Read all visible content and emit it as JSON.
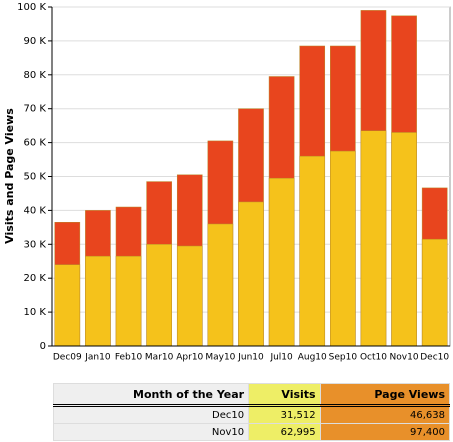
{
  "chart_data": {
    "type": "bar",
    "y_label": "Visits and Page Views",
    "categories": [
      "Dec09",
      "Jan10",
      "Feb10",
      "Mar10",
      "Apr10",
      "May10",
      "Jun10",
      "Jul10",
      "Aug10",
      "Sep10",
      "Oct10",
      "Nov10",
      "Dec10"
    ],
    "series": [
      {
        "name": "Page Views",
        "color": "#e8451e",
        "values": [
          36500,
          40000,
          41000,
          48500,
          50500,
          60500,
          70000,
          79500,
          88500,
          88500,
          99000,
          97400,
          46638
        ]
      },
      {
        "name": "Visits",
        "color": "#f5c21b",
        "values": [
          24000,
          26500,
          26500,
          30000,
          29500,
          36000,
          42500,
          49500,
          56000,
          57500,
          63500,
          62995,
          31512
        ]
      }
    ],
    "ylim": [
      0,
      100000
    ],
    "yticks": [
      {
        "value": 0,
        "label": "0"
      },
      {
        "value": 10000,
        "label": "10 K"
      },
      {
        "value": 20000,
        "label": "20 K"
      },
      {
        "value": 30000,
        "label": "30 K"
      },
      {
        "value": 40000,
        "label": "40 K"
      },
      {
        "value": 50000,
        "label": "50 K"
      },
      {
        "value": 60000,
        "label": "60 K"
      },
      {
        "value": 70000,
        "label": "70 K"
      },
      {
        "value": 80000,
        "label": "80 K"
      },
      {
        "value": 90000,
        "label": "90 K"
      },
      {
        "value": 100000,
        "label": "100 K"
      }
    ],
    "grid": true
  },
  "table": {
    "headers": [
      "Month of the Year",
      "Visits",
      "Page Views"
    ],
    "rows": [
      [
        "Dec10",
        "31,512",
        "46,638"
      ],
      [
        "Nov10",
        "62,995",
        "97,400"
      ]
    ]
  }
}
